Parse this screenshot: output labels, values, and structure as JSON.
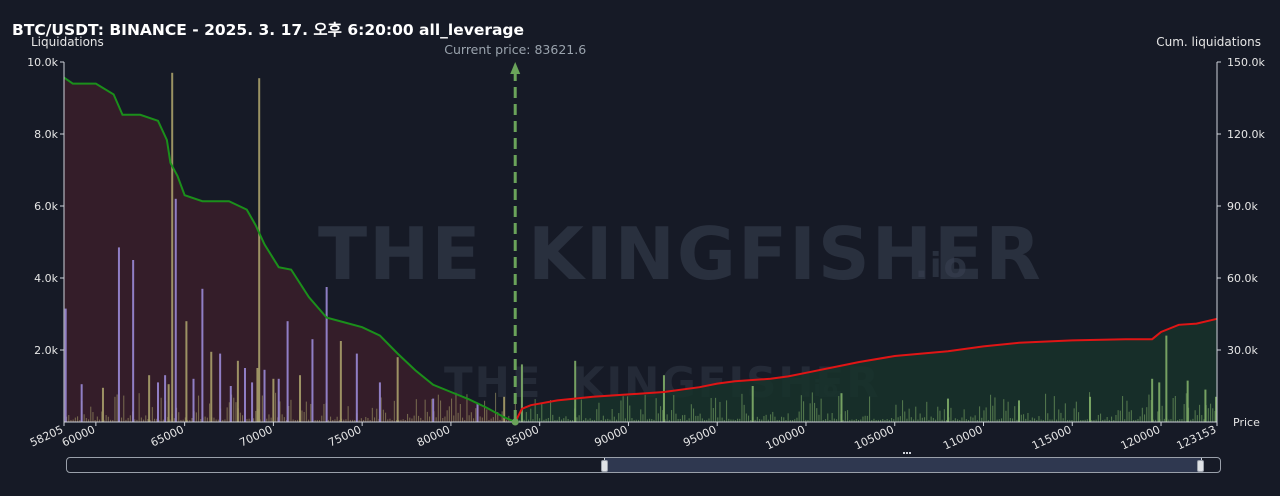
{
  "header": {
    "title": "BTC/USDT: BINANCE - 2025. 3. 17. 오후 6:20:00 all_leverage",
    "left_axis_title": "Liquidations",
    "right_axis_title": "Cum. liquidations",
    "price_axis_title": "Price",
    "current_price_label": "Current price: 83621.6"
  },
  "watermark": {
    "text_left": "THE",
    "text_right": "KINGFISHER",
    "suffix": ".io"
  },
  "colors": {
    "background": "#161a26",
    "short_cum_line": "#1b8f1b",
    "long_cum_line": "#e01515",
    "short_area": "#3a1e2a",
    "long_area": "#17322a",
    "bar_purple": "#9a8ad6",
    "bar_olive": "#a8a06a",
    "bar_green": "#7fae68",
    "current_price_line": "#6aa35a"
  },
  "chart_data": {
    "type": "bar",
    "title": "BTC/USDT: BINANCE - 2025. 3. 17. 오후 6:20:00 all_leverage",
    "xlabel": "Price",
    "ylabel": "Liquidations",
    "y2label": "Cum. liquidations",
    "xlim": [
      58205,
      123153
    ],
    "ylim": [
      0,
      10000
    ],
    "y2lim": [
      0,
      150000
    ],
    "x_ticks": [
      60000,
      65000,
      70000,
      75000,
      80000,
      85000,
      90000,
      95000,
      100000,
      105000,
      110000,
      115000,
      120000
    ],
    "x_tick_labels": [
      "58205",
      "60000",
      "65000",
      "70000",
      "75000",
      "80000",
      "85000",
      "90000",
      "95000",
      "100000",
      "105000",
      "110000",
      "115000",
      "120000",
      "123153"
    ],
    "y_ticks": [
      2000,
      4000,
      6000,
      8000,
      10000
    ],
    "y_tick_labels": [
      "2.0k",
      "4.0k",
      "6.0k",
      "8.0k",
      "10.0k"
    ],
    "y2_ticks": [
      30000,
      60000,
      90000,
      120000,
      150000
    ],
    "y2_tick_labels": [
      "30.0k",
      "60.0k",
      "90.0k",
      "120.0k",
      "150.0k"
    ],
    "current_price": 83621.6,
    "grid": false,
    "series": [
      {
        "kind": "line",
        "axis": "right",
        "x": [
          58205,
          58700,
          60000,
          61000,
          61500,
          62500,
          63500,
          64000,
          64200,
          64600,
          65000,
          66000,
          67500,
          68500,
          69000,
          69500,
          70300,
          71000,
          72000,
          73000,
          74000,
          75000,
          76000,
          77000,
          78000,
          79000,
          80000,
          81000,
          82000,
          83000,
          83621.6
        ],
        "y": [
          143500,
          141000,
          141000,
          136500,
          128000,
          128000,
          125500,
          117500,
          108000,
          102500,
          94500,
          92000,
          92000,
          88500,
          82000,
          74000,
          64500,
          63500,
          52000,
          43500,
          41500,
          39500,
          36000,
          28500,
          21500,
          15500,
          12500,
          9500,
          6000,
          2000,
          0
        ]
      },
      {
        "kind": "line",
        "axis": "right",
        "x": [
          83621.6,
          84000,
          84500,
          86000,
          88000,
          90000,
          92000,
          94000,
          95000,
          96000,
          98000,
          99000,
          100000,
          102000,
          103000,
          105000,
          108000,
          110000,
          112000,
          115000,
          118000,
          119500,
          120000,
          121000,
          122000,
          123153
        ],
        "y": [
          0,
          5500,
          7000,
          9000,
          10500,
          11500,
          12500,
          14500,
          16000,
          17000,
          18000,
          19000,
          20500,
          23500,
          25000,
          27500,
          29500,
          31500,
          33000,
          34000,
          34500,
          34500,
          37500,
          40500,
          41000,
          43000
        ]
      },
      {
        "kind": "bar",
        "axis": "left",
        "x": [
          58300,
          59200,
          60400,
          61300,
          62100,
          63000,
          63500,
          63900,
          64100,
          64300,
          64500,
          65100,
          65500,
          66000,
          66500,
          67000,
          67600,
          68000,
          68400,
          68800,
          69100,
          69200,
          69500,
          70000,
          70300,
          70800,
          71500,
          72200,
          73000,
          73800,
          74700,
          76000,
          77000,
          79000,
          81500,
          83000,
          84000,
          87000,
          92000,
          97000,
          102000,
          108000,
          112000,
          116000,
          119500,
          119900,
          120300,
          121500,
          122500,
          123100
        ],
        "y": [
          3150,
          1050,
          950,
          4850,
          4500,
          1300,
          1100,
          1300,
          1050,
          9700,
          6200,
          2800,
          1200,
          3700,
          1950,
          1900,
          1000,
          1700,
          1500,
          1100,
          1500,
          9550,
          1450,
          1200,
          1200,
          2800,
          1300,
          2300,
          3750,
          2250,
          1900,
          1100,
          1800,
          650,
          500,
          700,
          1600,
          1700,
          1300,
          1000,
          800,
          650,
          600,
          700,
          1200,
          1100,
          2400,
          1150,
          900,
          700
        ]
      }
    ]
  }
}
